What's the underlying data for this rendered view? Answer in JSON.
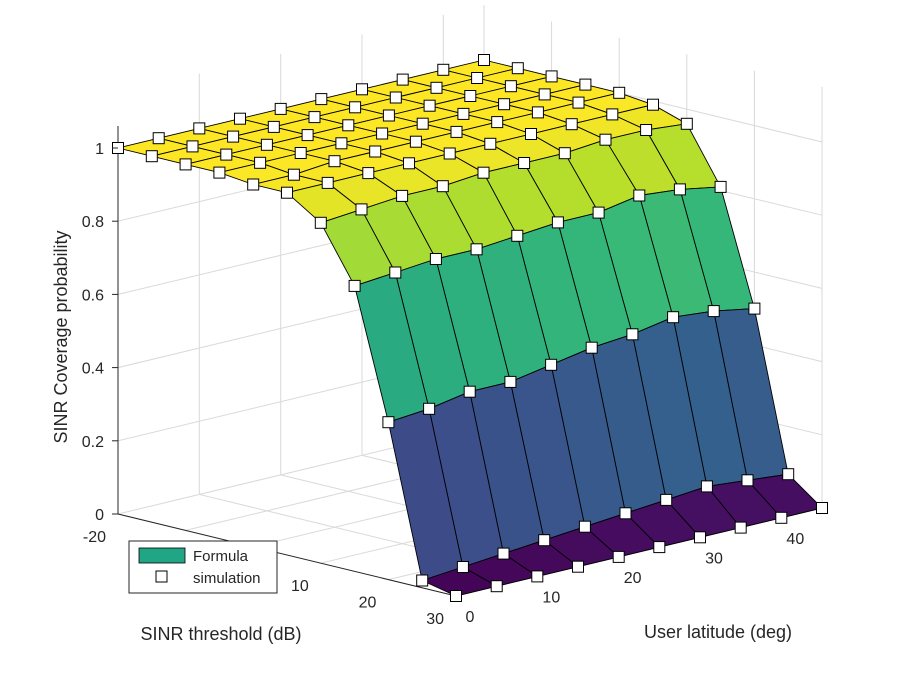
{
  "chart_data": {
    "type": "surface3d",
    "title": "",
    "xlabel": "SINR threshold (dB)",
    "ylabel": "User latitude (deg)",
    "zlabel": "SINR Coverage probability",
    "x_ticks": [
      "-20",
      "10",
      "20",
      "30"
    ],
    "y_ticks": [
      "0",
      "10",
      "20",
      "30",
      "40"
    ],
    "z_ticks": [
      "0",
      "0.2",
      "0.4",
      "0.6",
      "0.8",
      "1"
    ],
    "x_range": [
      -20,
      30
    ],
    "y_range": [
      0,
      45
    ],
    "z_range": [
      0,
      1
    ],
    "sinr_threshold_db": [
      -20,
      -15,
      -10,
      -5,
      0,
      5,
      10,
      15,
      20,
      25,
      30
    ],
    "user_latitude_deg": [
      0,
      5,
      10,
      15,
      20,
      25,
      30,
      35,
      40,
      45
    ],
    "coverage_probability": [
      [
        1.0,
        1.0,
        1.0,
        1.0,
        0.99,
        0.99,
        0.93,
        0.78,
        0.43,
        0.02,
        0.0
      ],
      [
        1.0,
        1.0,
        1.0,
        1.0,
        0.99,
        0.99,
        0.94,
        0.79,
        0.44,
        0.03,
        0.0
      ],
      [
        1.0,
        1.0,
        1.0,
        1.0,
        1.0,
        0.99,
        0.95,
        0.8,
        0.46,
        0.04,
        0.0
      ],
      [
        1.0,
        1.0,
        1.0,
        1.0,
        1.0,
        0.99,
        0.95,
        0.8,
        0.46,
        0.05,
        0.0
      ],
      [
        1.0,
        1.0,
        1.0,
        1.0,
        1.0,
        0.99,
        0.96,
        0.81,
        0.48,
        0.06,
        0.0
      ],
      [
        1.0,
        1.0,
        1.0,
        1.0,
        1.0,
        0.99,
        0.96,
        0.82,
        0.5,
        0.07,
        0.0
      ],
      [
        1.0,
        1.0,
        1.0,
        1.0,
        1.0,
        0.99,
        0.96,
        0.82,
        0.51,
        0.08,
        0.0
      ],
      [
        1.0,
        1.0,
        1.0,
        1.0,
        1.0,
        0.99,
        0.97,
        0.84,
        0.53,
        0.09,
        0.0
      ],
      [
        1.0,
        1.0,
        1.0,
        1.0,
        1.0,
        0.99,
        0.97,
        0.83,
        0.52,
        0.08,
        0.0
      ],
      [
        1.0,
        1.0,
        1.0,
        1.0,
        1.0,
        0.99,
        0.96,
        0.81,
        0.5,
        0.07,
        0.0
      ]
    ],
    "legend": {
      "position": "bottom-left",
      "entries": [
        {
          "label": "Formula",
          "marker": "surface"
        },
        {
          "label": "simulation",
          "marker": "square"
        }
      ]
    },
    "grid": true,
    "colormap": "viridis"
  }
}
